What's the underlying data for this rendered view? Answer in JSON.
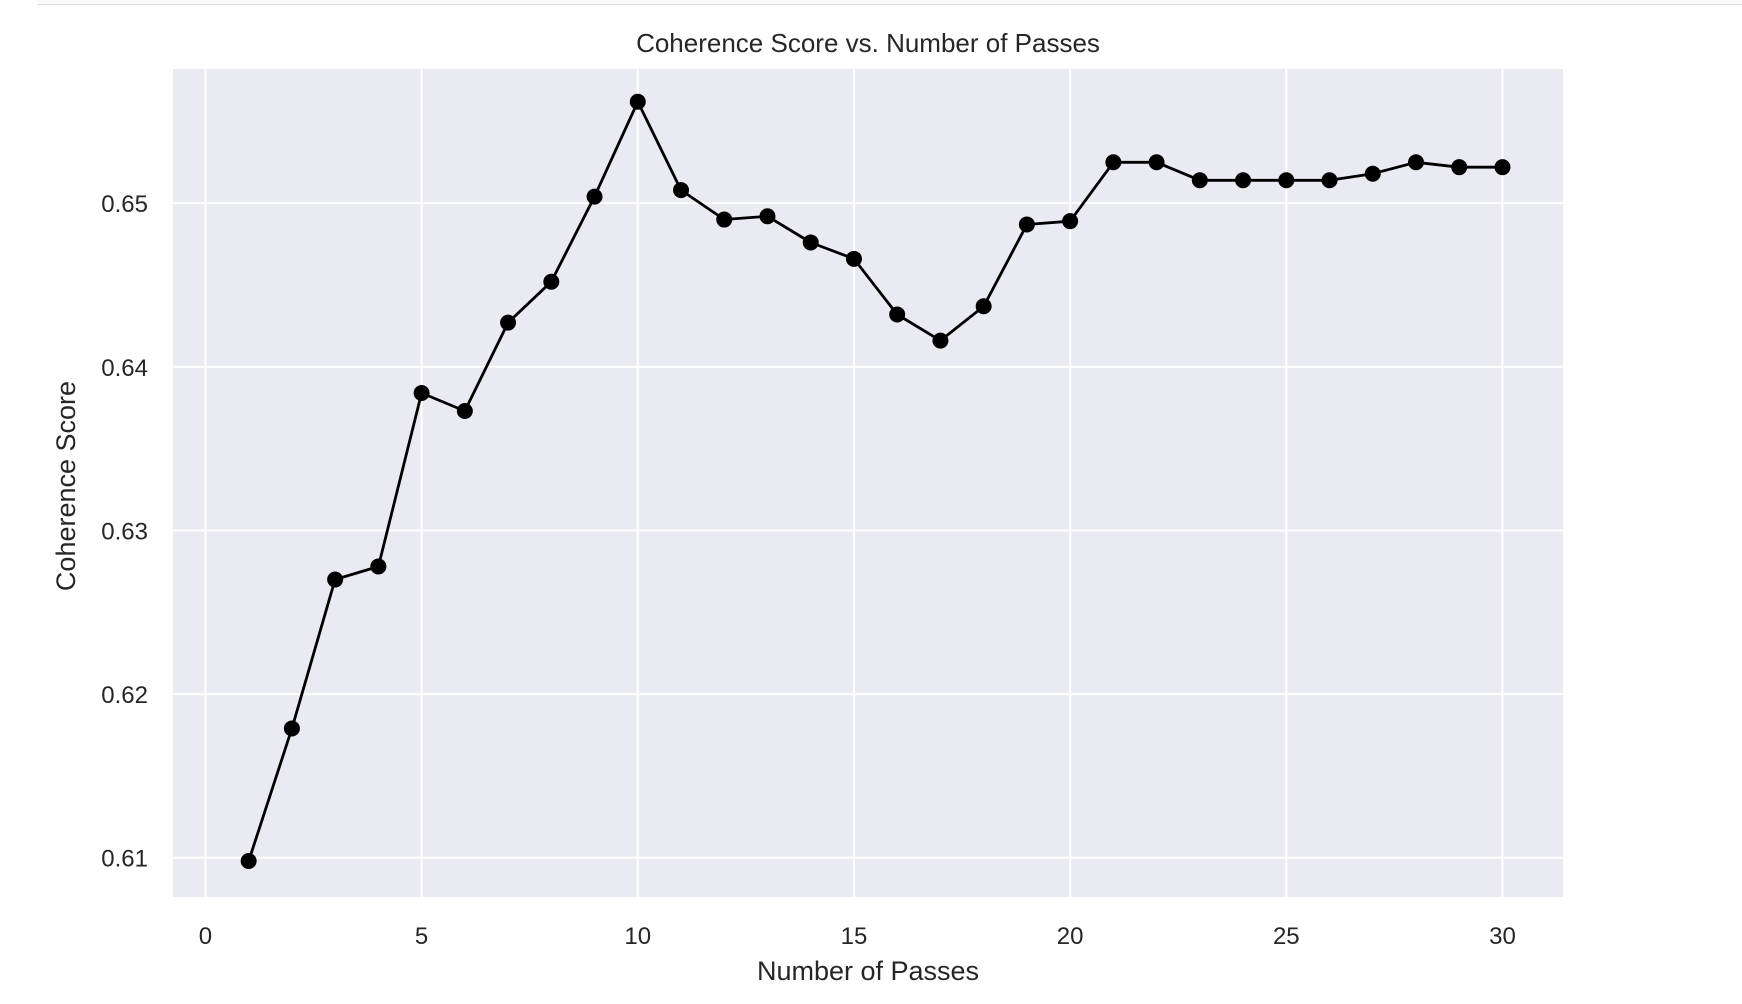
{
  "chart_data": {
    "type": "line",
    "title": "Coherence Score vs. Number of Passes",
    "xlabel": "Number of Passes",
    "ylabel": "Coherence Score",
    "xlim": [
      -0.75,
      31.4
    ],
    "ylim": [
      0.6076,
      0.6582
    ],
    "xticks": [
      0,
      5,
      10,
      15,
      20,
      25,
      30
    ],
    "yticks": [
      0.61,
      0.62,
      0.63,
      0.64,
      0.65
    ],
    "ytick_labels": [
      "0.61",
      "0.62",
      "0.63",
      "0.64",
      "0.65"
    ],
    "grid": true,
    "colors": {
      "plot_bg": "#eaeaf2",
      "grid": "#ffffff",
      "line": "#000000",
      "marker": "#000000"
    },
    "series": [
      {
        "marker": "circle",
        "x": [
          1,
          2,
          3,
          4,
          5,
          6,
          7,
          8,
          9,
          10,
          11,
          12,
          13,
          14,
          15,
          16,
          17,
          18,
          19,
          20,
          21,
          22,
          23,
          24,
          25,
          26,
          27,
          28,
          29,
          30
        ],
        "y": [
          0.6098,
          0.6179,
          0.627,
          0.6278,
          0.6384,
          0.6373,
          0.6427,
          0.6452,
          0.6504,
          0.6562,
          0.6508,
          0.649,
          0.6492,
          0.6476,
          0.6466,
          0.6432,
          0.6416,
          0.6437,
          0.6487,
          0.6489,
          0.6525,
          0.6525,
          0.6514,
          0.6514,
          0.6514,
          0.6514,
          0.6518,
          0.6525,
          0.6522,
          0.6522
        ]
      }
    ]
  }
}
